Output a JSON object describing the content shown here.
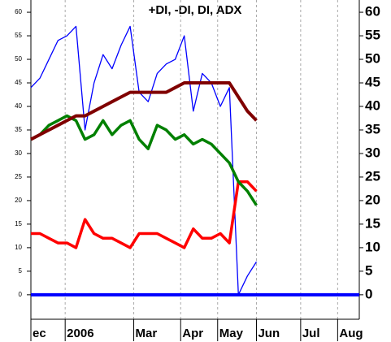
{
  "chart_data": {
    "type": "line",
    "title": "+DI, -DI, DI, ADX",
    "xlim": [
      0,
      36.4
    ],
    "ylim": [
      -5.2,
      62.6
    ],
    "yticks": [
      0,
      5,
      10,
      15,
      20,
      25,
      30,
      35,
      40,
      45,
      50,
      55,
      60
    ],
    "xticks": [
      {
        "value": 0,
        "label": "ec"
      },
      {
        "value": 3.8,
        "label": "2006"
      },
      {
        "value": 11.4,
        "label": "Mar"
      },
      {
        "value": 16.6,
        "label": "Apr"
      },
      {
        "value": 20.7,
        "label": "May"
      },
      {
        "value": 25,
        "label": "Jun"
      },
      {
        "value": 29.9,
        "label": "Jul"
      },
      {
        "value": 34,
        "label": "Aug"
      }
    ],
    "grid": true,
    "series": [
      {
        "color": "#0000ff",
        "width": 1.3,
        "x": [
          0,
          1,
          2,
          3,
          4,
          5,
          6,
          7,
          8,
          9,
          10,
          11,
          12,
          13,
          14,
          15,
          16,
          17,
          18,
          19,
          20,
          21,
          22,
          23,
          24,
          25
        ],
        "values": [
          44,
          46,
          50,
          54,
          55,
          57,
          35,
          45,
          51,
          48,
          53,
          57,
          43,
          41,
          47,
          49,
          50,
          55,
          39,
          47,
          45,
          40,
          44,
          0,
          4,
          7
        ]
      },
      {
        "color": "#ff0000",
        "width": 3.5,
        "x": [
          0,
          1,
          2,
          3,
          4,
          5,
          6,
          7,
          8,
          9,
          10,
          11,
          12,
          13,
          14,
          15,
          16,
          17,
          18,
          19,
          20,
          21,
          22,
          23,
          24,
          25
        ],
        "values": [
          13,
          13,
          12,
          11,
          11,
          10,
          16,
          13,
          12,
          12,
          11,
          10,
          13,
          13,
          13,
          12,
          11,
          10,
          14,
          12,
          12,
          13,
          11,
          24,
          24,
          22
        ]
      },
      {
        "color": "#008000",
        "width": 3.5,
        "x": [
          0,
          1,
          2,
          3,
          4,
          5,
          6,
          7,
          8,
          9,
          10,
          11,
          12,
          13,
          14,
          15,
          16,
          17,
          18,
          19,
          20,
          21,
          22,
          23,
          24,
          25
        ],
        "values": [
          33,
          34,
          36,
          37,
          38,
          37,
          33,
          34,
          37,
          34,
          36,
          37,
          33,
          31,
          36,
          35,
          33,
          34,
          32,
          33,
          32,
          30,
          28,
          24,
          22,
          19
        ]
      },
      {
        "color": "#800000",
        "width": 4,
        "x": [
          0,
          1,
          2,
          3,
          4,
          5,
          6,
          7,
          8,
          9,
          10,
          11,
          12,
          13,
          14,
          15,
          16,
          17,
          18,
          19,
          20,
          21,
          22,
          23,
          24,
          25
        ],
        "values": [
          33,
          34,
          35,
          36,
          37,
          38,
          38,
          39,
          40,
          41,
          42,
          43,
          43,
          43,
          43,
          43,
          44,
          45,
          45,
          45,
          45,
          45,
          45,
          42,
          39,
          37
        ]
      },
      {
        "color": "#0000ff",
        "width": 4,
        "x": [
          0,
          36.4
        ],
        "values": [
          0,
          0
        ]
      }
    ]
  }
}
